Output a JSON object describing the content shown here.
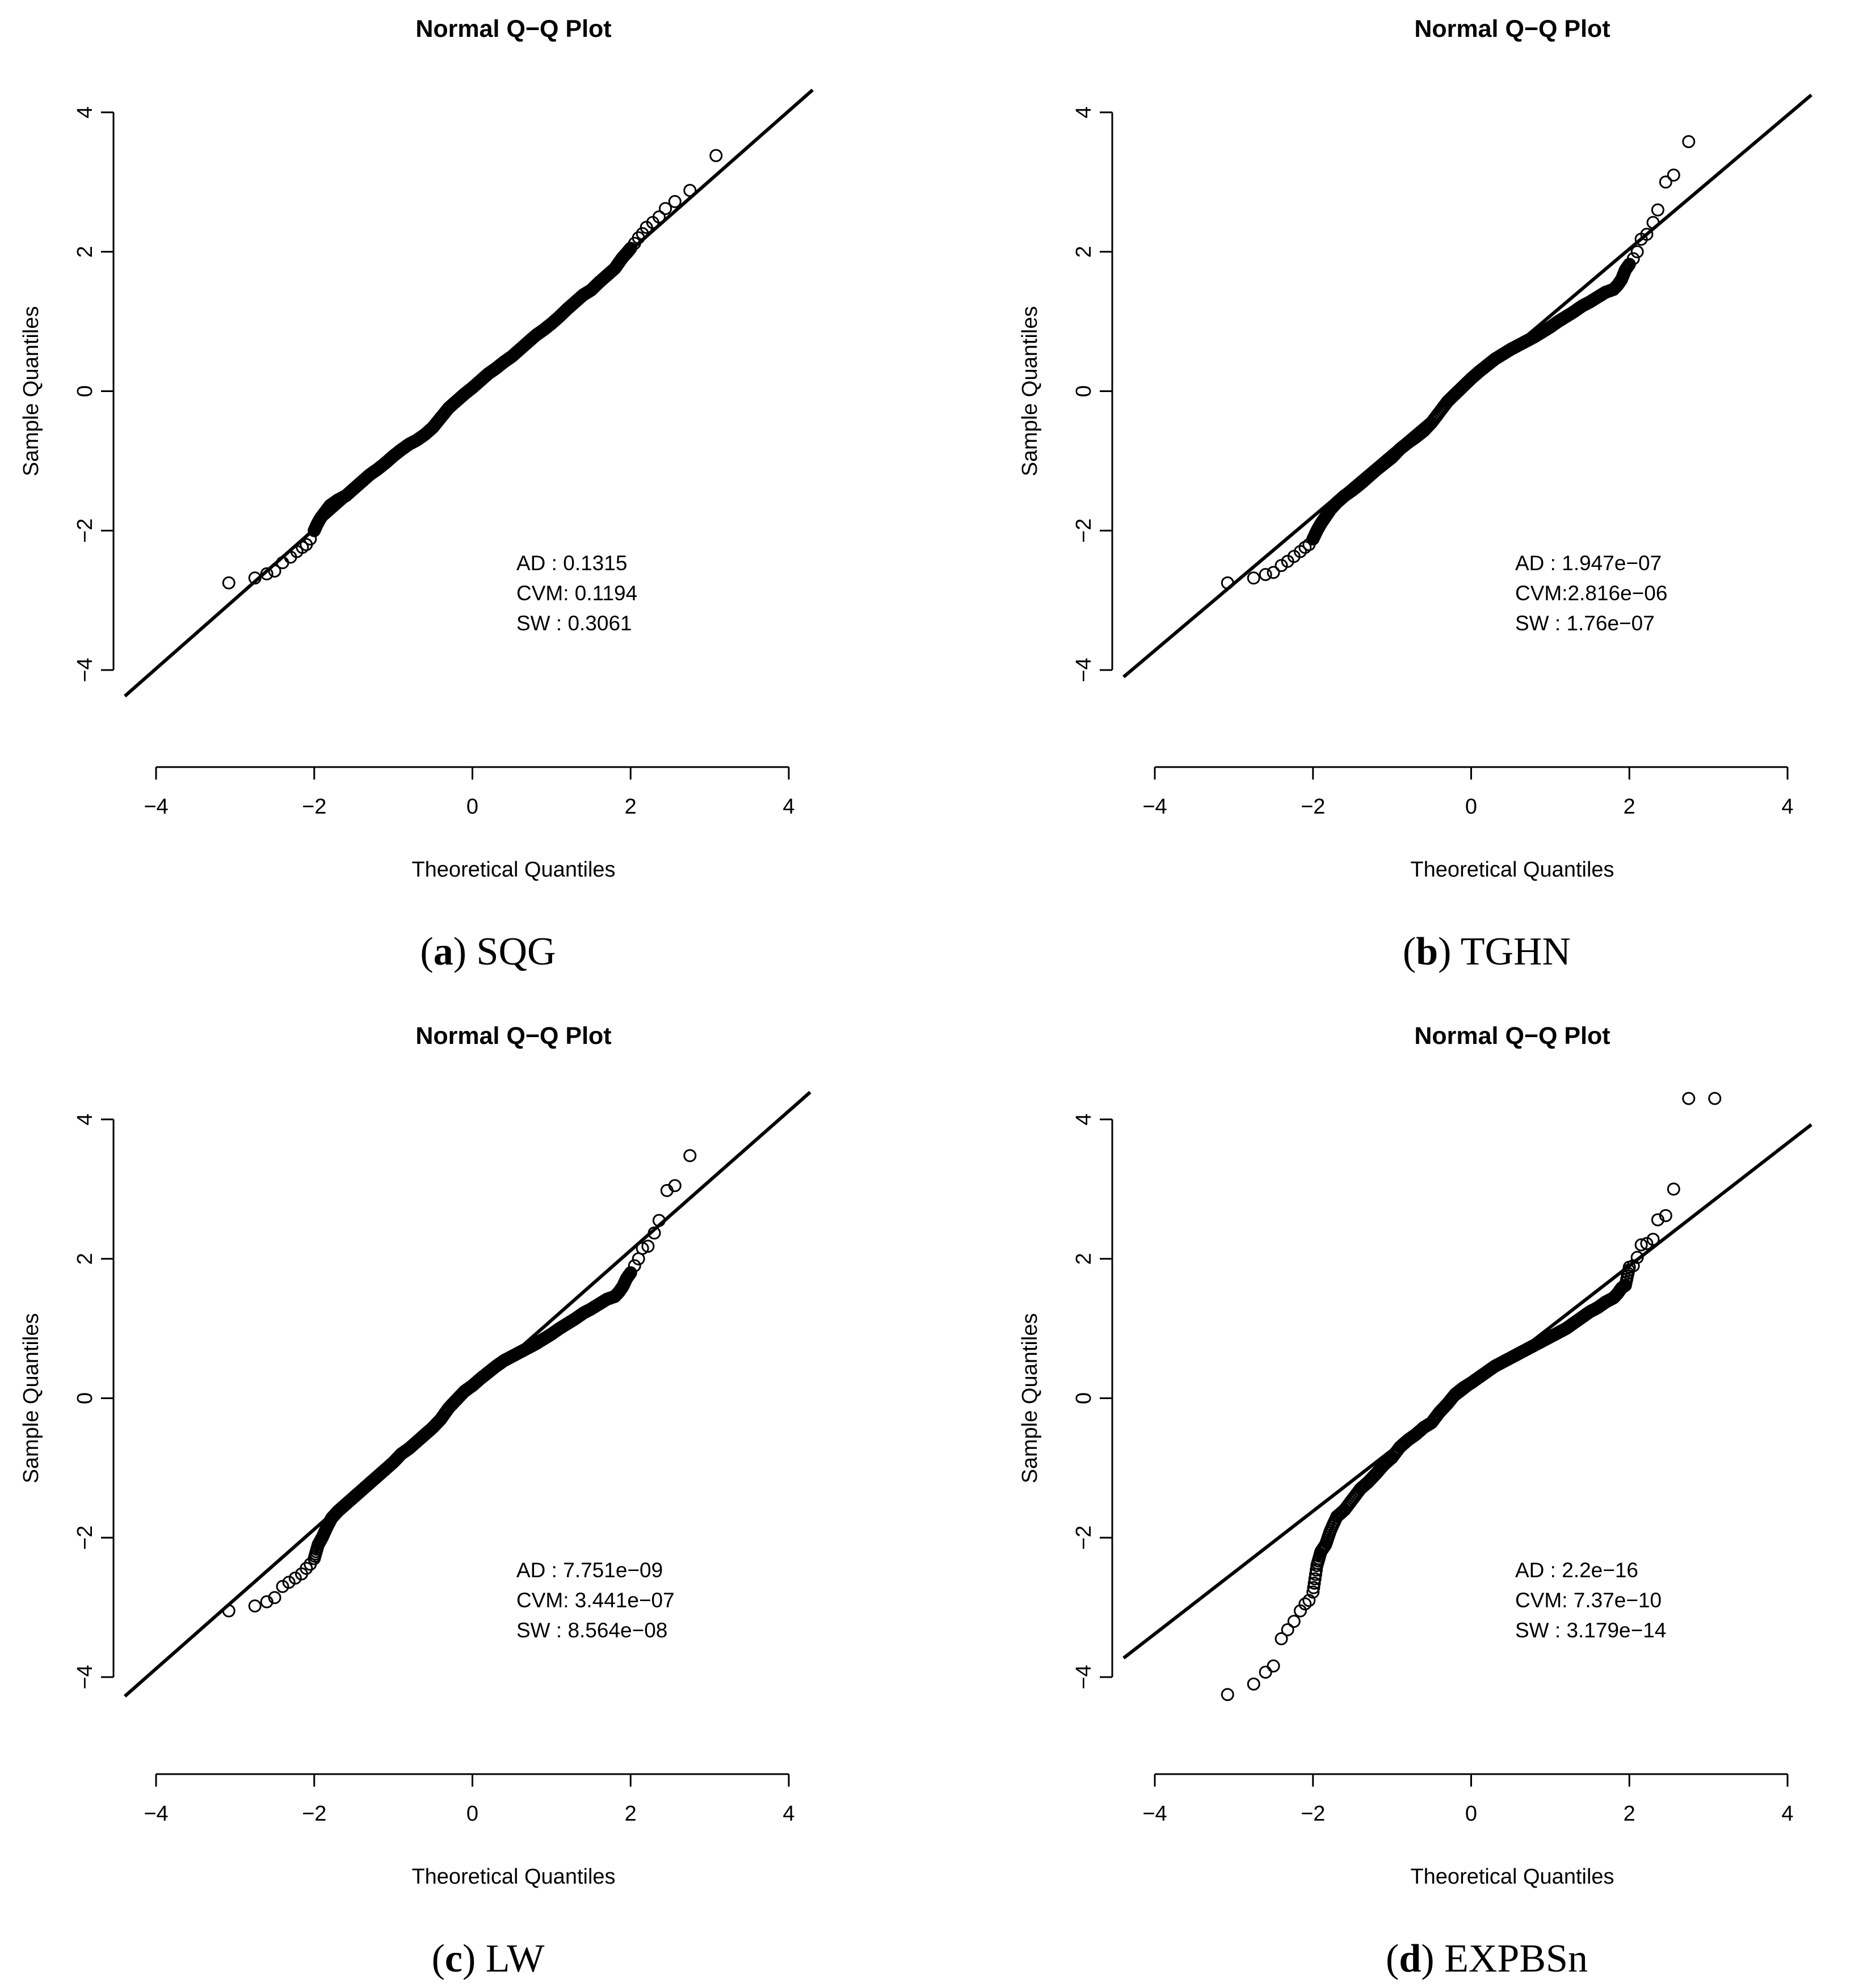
{
  "figure": {
    "panels": [
      {
        "id": "a",
        "caption_letter": "a",
        "caption_name": "SQG",
        "stats": [
          {
            "label": "AD",
            "value": "0.1315",
            "line": "AD   : 0.1315"
          },
          {
            "label": "CVM",
            "value": "0.1194",
            "line": "CVM: 0.1194"
          },
          {
            "label": "SW",
            "value": "0.3061",
            "line": "SW   : 0.3061"
          }
        ]
      },
      {
        "id": "b",
        "caption_letter": "b",
        "caption_name": "TGHN",
        "stats": [
          {
            "label": "AD",
            "value": "1.947e-07",
            "line": "AD   : 1.947e−07"
          },
          {
            "label": "CVM",
            "value": "2.816e-06",
            "line": "CVM:2.816e−06"
          },
          {
            "label": "SW",
            "value": "1.76e-07",
            "line": "SW   : 1.76e−07"
          }
        ]
      },
      {
        "id": "c",
        "caption_letter": "c",
        "caption_name": "LW",
        "stats": [
          {
            "label": "AD",
            "value": "7.751e-09",
            "line": "AD   : 7.751e−09"
          },
          {
            "label": "CVM",
            "value": "3.441e-07",
            "line": "CVM: 3.441e−07"
          },
          {
            "label": "SW",
            "value": "8.564e-08",
            "line": "SW   : 8.564e−08"
          }
        ]
      },
      {
        "id": "d",
        "caption_letter": "d",
        "caption_name": "EXPBSn",
        "stats": [
          {
            "label": "AD",
            "value": "2.2e-16",
            "line": "AD   : 2.2e−16"
          },
          {
            "label": "CVM",
            "value": "7.37e-10",
            "line": "CVM: 7.37e−10"
          },
          {
            "label": "SW",
            "value": "3.179e-14",
            "line": "SW   : 3.179e−14"
          }
        ]
      }
    ]
  },
  "chart_data": [
    {
      "type": "scatter",
      "title": "Normal Q−Q Plot",
      "xlabel": "Theoretical Quantiles",
      "ylabel": "Sample Quantiles",
      "xlim": [
        -4,
        4
      ],
      "ylim": [
        -4,
        4
      ],
      "xticks": [
        -4,
        -2,
        0,
        2,
        4
      ],
      "yticks": [
        -4,
        -2,
        0,
        2,
        4
      ],
      "xtick_labels": [
        "−4",
        "−2",
        "0",
        "2",
        "4"
      ],
      "ytick_labels": [
        "−4",
        "−2",
        "0",
        "2",
        "4"
      ],
      "reference_line": {
        "intercept": 0.02,
        "slope": 1.0
      },
      "x": [
        -3.08,
        -2.75,
        -2.6,
        -2.5,
        -2.4,
        -2.3,
        -2.22,
        -2.15,
        -2.1,
        -2.05,
        -2.0,
        -1.96,
        -1.92,
        -1.88,
        -1.84,
        -1.8,
        -1.75,
        -1.7,
        -1.6,
        -1.5,
        -1.4,
        -1.3,
        -1.2,
        -1.1,
        -1.0,
        -0.9,
        -0.8,
        -0.7,
        -0.6,
        -0.5,
        -0.4,
        -0.3,
        -0.2,
        -0.1,
        0.0,
        0.1,
        0.2,
        0.3,
        0.4,
        0.5,
        0.6,
        0.7,
        0.8,
        0.9,
        1.0,
        1.1,
        1.2,
        1.3,
        1.4,
        1.5,
        1.6,
        1.7,
        1.8,
        1.85,
        1.9,
        1.95,
        2.0,
        2.05,
        2.1,
        2.15,
        2.2,
        2.28,
        2.36,
        2.44,
        2.56,
        2.75,
        3.08
      ],
      "y": [
        -2.75,
        -2.68,
        -2.62,
        -2.58,
        -2.46,
        -2.38,
        -2.3,
        -2.24,
        -2.2,
        -2.12,
        -2.0,
        -1.9,
        -1.82,
        -1.76,
        -1.7,
        -1.64,
        -1.6,
        -1.56,
        -1.5,
        -1.4,
        -1.3,
        -1.2,
        -1.12,
        -1.03,
        -0.93,
        -0.84,
        -0.76,
        -0.7,
        -0.62,
        -0.52,
        -0.38,
        -0.24,
        -0.14,
        -0.04,
        0.05,
        0.15,
        0.25,
        0.33,
        0.42,
        0.5,
        0.6,
        0.7,
        0.8,
        0.88,
        0.97,
        1.07,
        1.18,
        1.28,
        1.38,
        1.45,
        1.56,
        1.66,
        1.76,
        1.84,
        1.92,
        1.98,
        2.05,
        2.12,
        2.2,
        2.26,
        2.35,
        2.42,
        2.5,
        2.62,
        2.72,
        2.88,
        3.38
      ]
    },
    {
      "type": "scatter",
      "title": "Normal Q−Q Plot",
      "xlabel": "Theoretical Quantiles",
      "ylabel": "Sample Quantiles",
      "xlim": [
        -4,
        4
      ],
      "ylim": [
        -4,
        4
      ],
      "xticks": [
        -4,
        -2,
        0,
        2,
        4
      ],
      "yticks": [
        -4,
        -2,
        0,
        2,
        4
      ],
      "xtick_labels": [
        "−4",
        "−2",
        "0",
        "2",
        "4"
      ],
      "ytick_labels": [
        "−4",
        "−2",
        "0",
        "2",
        "4"
      ],
      "reference_line": {
        "intercept": 0.12,
        "slope": 0.96
      },
      "x": [
        -3.08,
        -2.75,
        -2.6,
        -2.5,
        -2.4,
        -2.32,
        -2.24,
        -2.16,
        -2.1,
        -2.05,
        -2.0,
        -1.95,
        -1.9,
        -1.84,
        -1.78,
        -1.7,
        -1.6,
        -1.5,
        -1.4,
        -1.3,
        -1.2,
        -1.1,
        -1.0,
        -0.9,
        -0.8,
        -0.7,
        -0.6,
        -0.5,
        -0.4,
        -0.3,
        -0.2,
        -0.1,
        0.0,
        0.1,
        0.2,
        0.3,
        0.4,
        0.5,
        0.6,
        0.7,
        0.8,
        0.9,
        1.0,
        1.1,
        1.2,
        1.3,
        1.4,
        1.5,
        1.6,
        1.7,
        1.8,
        1.85,
        1.9,
        1.95,
        2.0,
        2.05,
        2.1,
        2.15,
        2.22,
        2.3,
        2.36,
        2.46,
        2.56,
        2.75
      ],
      "y": [
        -2.75,
        -2.68,
        -2.63,
        -2.6,
        -2.5,
        -2.44,
        -2.37,
        -2.3,
        -2.24,
        -2.2,
        -2.12,
        -2.0,
        -1.9,
        -1.8,
        -1.7,
        -1.6,
        -1.5,
        -1.42,
        -1.33,
        -1.23,
        -1.13,
        -1.04,
        -0.95,
        -0.83,
        -0.74,
        -0.66,
        -0.57,
        -0.45,
        -0.3,
        -0.15,
        -0.04,
        0.07,
        0.18,
        0.28,
        0.37,
        0.46,
        0.53,
        0.6,
        0.66,
        0.72,
        0.78,
        0.85,
        0.92,
        1.0,
        1.07,
        1.14,
        1.22,
        1.28,
        1.35,
        1.42,
        1.46,
        1.52,
        1.6,
        1.74,
        1.82,
        1.9,
        2.0,
        2.18,
        2.25,
        2.42,
        2.6,
        3.0,
        3.1,
        3.58
      ]
    },
    {
      "type": "scatter",
      "title": "Normal Q−Q Plot",
      "xlabel": "Theoretical Quantiles",
      "ylabel": "Sample Quantiles",
      "xlim": [
        -4,
        4
      ],
      "ylim": [
        -4,
        4
      ],
      "xticks": [
        -4,
        -2,
        0,
        2,
        4
      ],
      "yticks": [
        -4,
        -2,
        0,
        2,
        4
      ],
      "xtick_labels": [
        "−4",
        "−2",
        "0",
        "2",
        "4"
      ],
      "ytick_labels": [
        "−4",
        "−2",
        "0",
        "2",
        "4"
      ],
      "reference_line": {
        "intercept": 0.12,
        "slope": 1.0
      },
      "x": [
        -3.08,
        -2.75,
        -2.6,
        -2.5,
        -2.4,
        -2.32,
        -2.24,
        -2.16,
        -2.1,
        -2.05,
        -2.0,
        -1.95,
        -1.9,
        -1.84,
        -1.78,
        -1.7,
        -1.6,
        -1.5,
        -1.4,
        -1.3,
        -1.2,
        -1.1,
        -1.0,
        -0.9,
        -0.8,
        -0.7,
        -0.6,
        -0.5,
        -0.4,
        -0.3,
        -0.2,
        -0.1,
        0.0,
        0.1,
        0.2,
        0.3,
        0.4,
        0.5,
        0.6,
        0.7,
        0.8,
        0.9,
        1.0,
        1.1,
        1.2,
        1.3,
        1.4,
        1.5,
        1.6,
        1.7,
        1.8,
        1.85,
        1.9,
        1.95,
        2.0,
        2.05,
        2.1,
        2.15,
        2.22,
        2.3,
        2.36,
        2.46,
        2.56,
        2.75
      ],
      "y": [
        -3.05,
        -2.98,
        -2.92,
        -2.86,
        -2.7,
        -2.64,
        -2.58,
        -2.52,
        -2.44,
        -2.38,
        -2.3,
        -2.1,
        -2.0,
        -1.85,
        -1.72,
        -1.62,
        -1.52,
        -1.42,
        -1.32,
        -1.22,
        -1.12,
        -1.02,
        -0.92,
        -0.8,
        -0.72,
        -0.62,
        -0.52,
        -0.42,
        -0.3,
        -0.14,
        -0.02,
        0.1,
        0.18,
        0.28,
        0.37,
        0.46,
        0.54,
        0.6,
        0.66,
        0.72,
        0.78,
        0.85,
        0.92,
        1.0,
        1.07,
        1.14,
        1.22,
        1.28,
        1.35,
        1.42,
        1.46,
        1.52,
        1.6,
        1.72,
        1.8,
        1.9,
        2.0,
        2.15,
        2.18,
        2.37,
        2.55,
        2.98,
        3.05,
        3.48
      ]
    },
    {
      "type": "scatter",
      "title": "Normal Q−Q Plot",
      "xlabel": "Theoretical Quantiles",
      "ylabel": "Sample Quantiles",
      "xlim": [
        -4,
        4
      ],
      "ylim": [
        -4,
        4
      ],
      "xticks": [
        -4,
        -2,
        0,
        2,
        4
      ],
      "yticks": [
        -4,
        -2,
        0,
        2,
        4
      ],
      "xtick_labels": [
        "−4",
        "−2",
        "0",
        "2",
        "4"
      ],
      "ytick_labels": [
        "−4",
        "−2",
        "0",
        "2",
        "4"
      ],
      "reference_line": {
        "intercept": 0.14,
        "slope": 0.88
      },
      "x": [
        -3.08,
        -2.75,
        -2.6,
        -2.5,
        -2.4,
        -2.32,
        -2.24,
        -2.16,
        -2.1,
        -2.05,
        -2.0,
        -1.95,
        -1.9,
        -1.84,
        -1.78,
        -1.7,
        -1.6,
        -1.5,
        -1.4,
        -1.3,
        -1.2,
        -1.1,
        -1.0,
        -0.9,
        -0.8,
        -0.7,
        -0.6,
        -0.5,
        -0.4,
        -0.3,
        -0.2,
        -0.1,
        0.0,
        0.1,
        0.2,
        0.3,
        0.4,
        0.5,
        0.6,
        0.7,
        0.8,
        0.9,
        1.0,
        1.1,
        1.2,
        1.3,
        1.4,
        1.5,
        1.6,
        1.7,
        1.8,
        1.85,
        1.9,
        1.95,
        2.0,
        2.05,
        2.1,
        2.15,
        2.22,
        2.3,
        2.36,
        2.46,
        2.56,
        2.75,
        3.08
      ],
      "y": [
        -4.25,
        -4.1,
        -3.93,
        -3.84,
        -3.45,
        -3.32,
        -3.2,
        -3.05,
        -2.95,
        -2.9,
        -2.78,
        -2.4,
        -2.2,
        -2.1,
        -1.9,
        -1.7,
        -1.6,
        -1.45,
        -1.3,
        -1.2,
        -1.08,
        -0.95,
        -0.85,
        -0.7,
        -0.6,
        -0.52,
        -0.42,
        -0.35,
        -0.2,
        -0.08,
        0.06,
        0.15,
        0.22,
        0.3,
        0.38,
        0.46,
        0.52,
        0.58,
        0.64,
        0.7,
        0.76,
        0.82,
        0.88,
        0.94,
        1.0,
        1.08,
        1.16,
        1.24,
        1.3,
        1.38,
        1.44,
        1.5,
        1.58,
        1.62,
        1.88,
        1.9,
        2.02,
        2.2,
        2.22,
        2.28,
        2.56,
        2.62,
        3.0,
        4.3,
        4.3
      ]
    }
  ]
}
